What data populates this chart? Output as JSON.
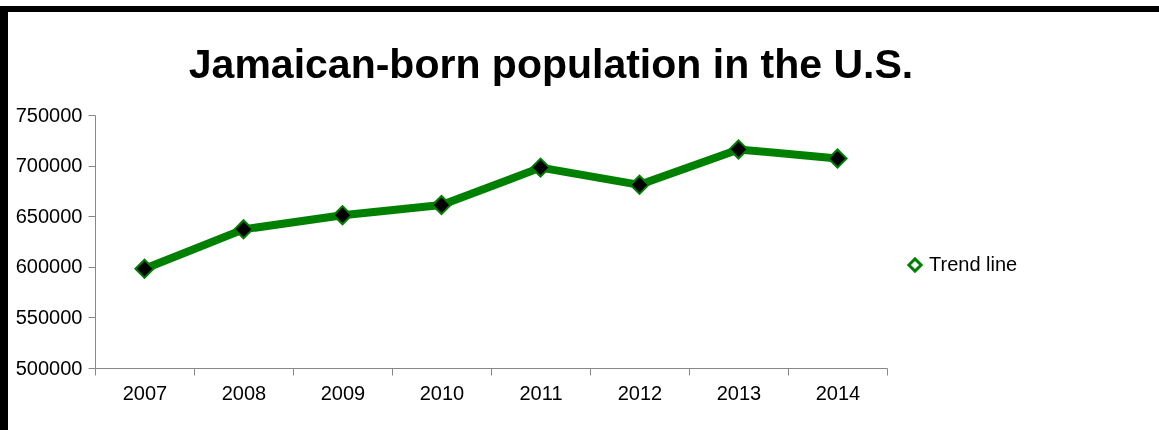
{
  "chart_data": {
    "type": "line",
    "title": "Jamaican-born population in the U.S.",
    "categories": [
      "2007",
      "2008",
      "2009",
      "2010",
      "2011",
      "2012",
      "2013",
      "2014"
    ],
    "series": [
      {
        "name": "Trend line",
        "color": "#008000",
        "values": [
          598000,
          637000,
          651000,
          661000,
          698000,
          681000,
          716000,
          707000
        ]
      }
    ],
    "ylim": [
      500000,
      750000
    ],
    "yticks": [
      500000,
      550000,
      600000,
      650000,
      700000,
      750000
    ],
    "grid": false,
    "legend": "right",
    "marker": "diamond",
    "line_style": "solid"
  }
}
